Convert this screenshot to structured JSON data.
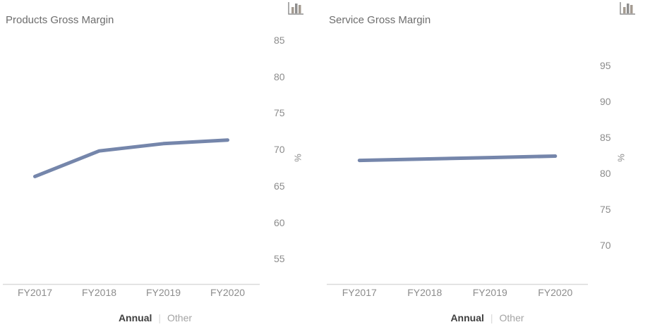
{
  "charts": [
    {
      "icon": "bar-chart-icon",
      "footer": {
        "annual_label": "Annual",
        "separator": "|",
        "other_label": "Other",
        "active": "Annual"
      }
    },
    {
      "icon": "bar-chart-icon",
      "footer": {
        "annual_label": "Annual",
        "separator": "|",
        "other_label": "Other",
        "active": "Annual"
      }
    }
  ],
  "chart_data": [
    {
      "type": "line",
      "title": "Products Gross Margin",
      "categories": [
        "FY2017",
        "FY2018",
        "FY2019",
        "FY2020"
      ],
      "values": [
        66.3,
        69.8,
        70.8,
        71.3
      ],
      "xlabel": "",
      "ylabel": "%",
      "yticks": [
        85,
        80,
        75,
        70,
        65,
        60,
        55
      ],
      "ylim": [
        52,
        87
      ],
      "grid": false,
      "legend": false,
      "legend_position": "none",
      "line_color": "#7586ab"
    },
    {
      "type": "line",
      "title": "Service Gross Margin",
      "categories": [
        "FY2017",
        "FY2018",
        "FY2019",
        "FY2020"
      ],
      "values": [
        81.8,
        82.0,
        82.2,
        82.4
      ],
      "xlabel": "",
      "ylabel": "%",
      "yticks": [
        95,
        90,
        85,
        80,
        75,
        70
      ],
      "ylim": [
        67,
        97
      ],
      "grid": false,
      "legend": false,
      "legend_position": "none",
      "line_color": "#7586ab"
    }
  ],
  "colors": {
    "background": "#ffffff",
    "title_text": "#6d6d6d",
    "tick_text": "#8c8c8c",
    "axis_line": "#d9d9d9",
    "series_line": "#7586ab",
    "footer_active_text": "#3f3f3f",
    "footer_inactive_text": "#a3a3a3",
    "footer_separator": "#d9d9d9",
    "icon_gray": "#8f8f8f"
  }
}
